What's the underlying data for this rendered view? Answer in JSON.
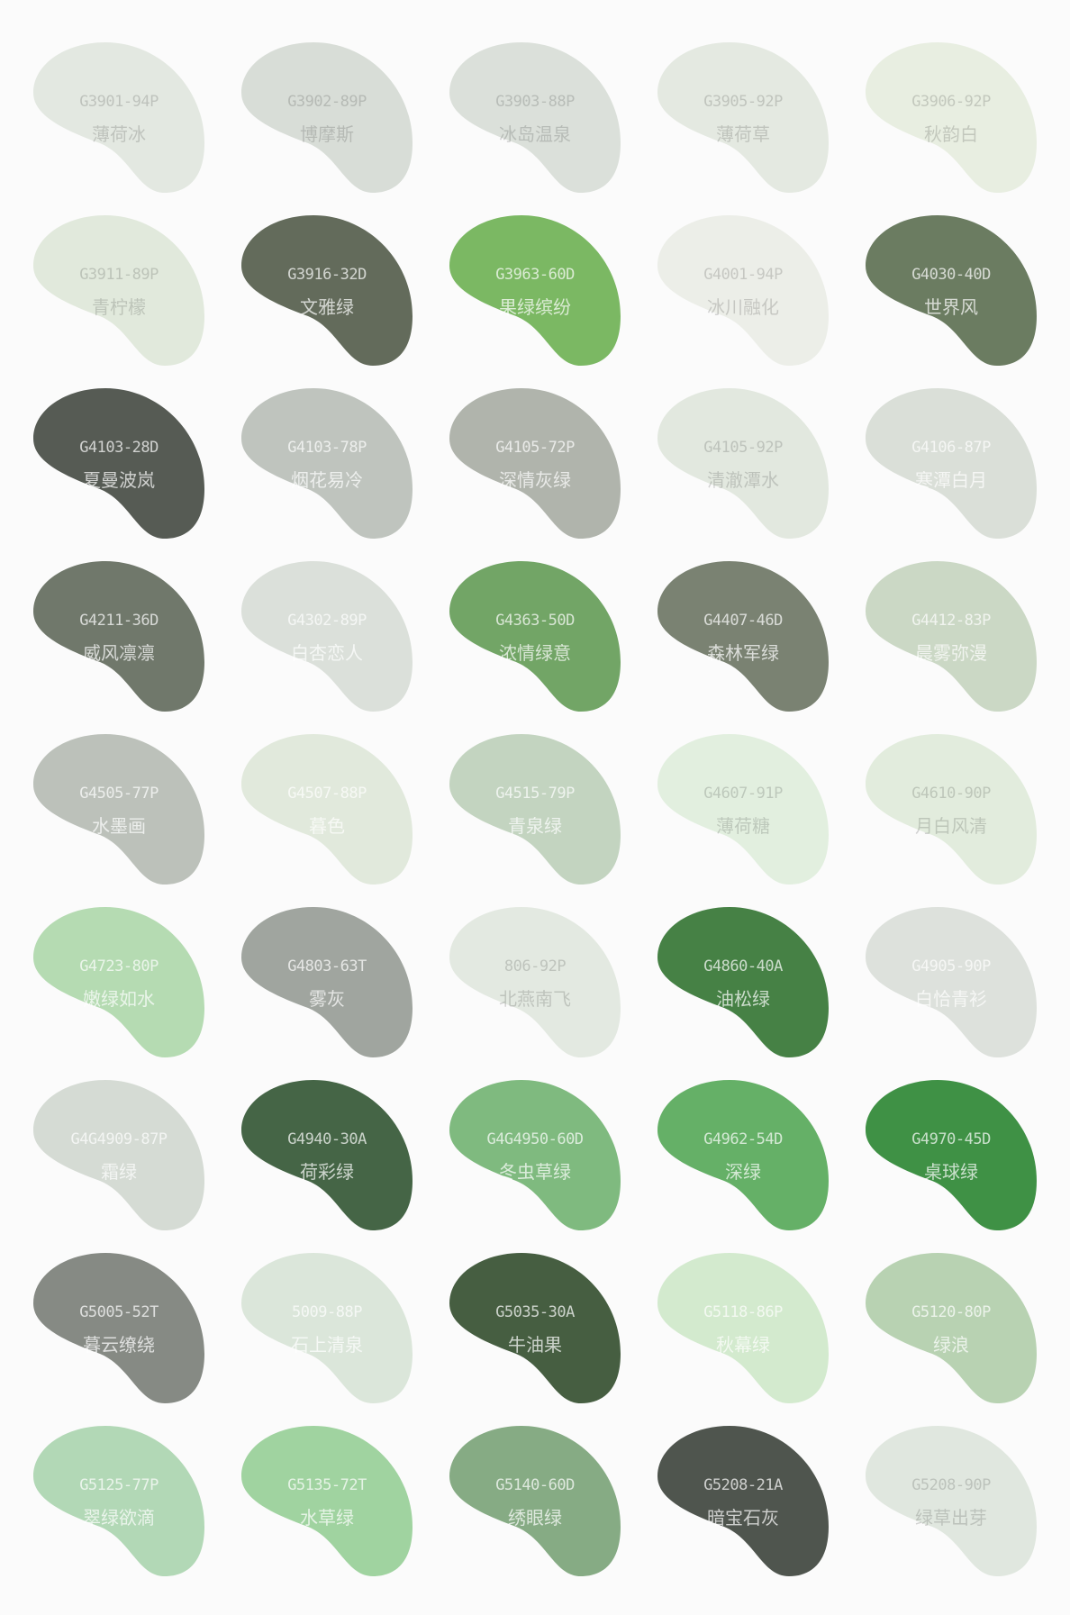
{
  "swatches": [
    {
      "code": "G3901-94P",
      "name": "薄荷冰",
      "color": "#e3e8e1",
      "tone": "light"
    },
    {
      "code": "G3902-89P",
      "name": "博摩斯",
      "color": "#d8ddd7",
      "tone": "light"
    },
    {
      "code": "G3903-88P",
      "name": "冰岛温泉",
      "color": "#dbe0da",
      "tone": "light"
    },
    {
      "code": "G3905-92P",
      "name": "薄荷草",
      "color": "#e4e9e1",
      "tone": "light"
    },
    {
      "code": "G3906-92P",
      "name": "秋韵白",
      "color": "#e8eee1",
      "tone": "light"
    },
    {
      "code": "G3911-89P",
      "name": "青柠檬",
      "color": "#e1e9dc",
      "tone": "light"
    },
    {
      "code": "G3916-32D",
      "name": "文雅绿",
      "color": "#636b5b",
      "tone": "dark"
    },
    {
      "code": "G3963-60D",
      "name": "果绿缤纷",
      "color": "#7bb863",
      "tone": "dark"
    },
    {
      "code": "G4001-94P",
      "name": "冰川融化",
      "color": "#eceee8",
      "tone": "light"
    },
    {
      "code": "G4030-40D",
      "name": "世界风",
      "color": "#6b7c61",
      "tone": "dark"
    },
    {
      "code": "G4103-28D",
      "name": "夏曼波岚",
      "color": "#565b54",
      "tone": "dark"
    },
    {
      "code": "G4103-78P",
      "name": "烟花易冷",
      "color": "#bfc4be",
      "tone": "dark"
    },
    {
      "code": "G4105-72P",
      "name": "深情灰绿",
      "color": "#b0b4ac",
      "tone": "dark"
    },
    {
      "code": "G4105-92P",
      "name": "清澈潭水",
      "color": "#e2e8df",
      "tone": "light"
    },
    {
      "code": "G4106-87P",
      "name": "寒潭白月",
      "color": "#dadfd8",
      "tone": "dark"
    },
    {
      "code": "G4211-36D",
      "name": "威风凛凛",
      "color": "#70786b",
      "tone": "dark"
    },
    {
      "code": "G4302-89P",
      "name": "白杏恋人",
      "color": "#dbe0da",
      "tone": "dark"
    },
    {
      "code": "G4363-50D",
      "name": "浓情绿意",
      "color": "#72a566",
      "tone": "dark"
    },
    {
      "code": "G4407-46D",
      "name": "森林军绿",
      "color": "#7a8272",
      "tone": "dark"
    },
    {
      "code": "G4412-83P",
      "name": "晨雾弥漫",
      "color": "#cbd8c5",
      "tone": "dark"
    },
    {
      "code": "G4505-77P",
      "name": "水墨画",
      "color": "#bcc1ba",
      "tone": "dark"
    },
    {
      "code": "G4507-88P",
      "name": "暮色",
      "color": "#e1e9dc",
      "tone": "dark"
    },
    {
      "code": "G4515-79P",
      "name": "青泉绿",
      "color": "#c3d4c0",
      "tone": "dark"
    },
    {
      "code": "G4607-91P",
      "name": "薄荷糖",
      "color": "#e2efdf",
      "tone": "light"
    },
    {
      "code": "G4610-90P",
      "name": "月白风清",
      "color": "#e2ecdd",
      "tone": "light"
    },
    {
      "code": "G4723-80P",
      "name": "嫩绿如水",
      "color": "#b5dbb2",
      "tone": "dark"
    },
    {
      "code": "G4803-63T",
      "name": "雾灰",
      "color": "#a0a59f",
      "tone": "dark"
    },
    {
      "code": "806-92P",
      "name": "北燕南飞",
      "color": "#e3e9e1",
      "tone": "light"
    },
    {
      "code": "G4860-40A",
      "name": "油松绿",
      "color": "#468145",
      "tone": "dark"
    },
    {
      "code": "G4905-90P",
      "name": "白恰青衫",
      "color": "#dde1dc",
      "tone": "dark"
    },
    {
      "code": "G4G4909-87P",
      "name": "霜绿",
      "color": "#d5dbd4",
      "tone": "dark"
    },
    {
      "code": "G4940-30A",
      "name": "荷彩绿",
      "color": "#456546",
      "tone": "dark"
    },
    {
      "code": "G4G4950-60D",
      "name": "冬虫草绿",
      "color": "#7fba7f",
      "tone": "dark"
    },
    {
      "code": "G4962-54D",
      "name": "深绿",
      "color": "#65b067",
      "tone": "dark"
    },
    {
      "code": "G4970-45D",
      "name": "桌球绿",
      "color": "#3f9145",
      "tone": "dark"
    },
    {
      "code": "G5005-52T",
      "name": "暮云缭绕",
      "color": "#868a84",
      "tone": "dark"
    },
    {
      "code": "5009-88P",
      "name": "石上清泉",
      "color": "#dbe6da",
      "tone": "dark"
    },
    {
      "code": "G5035-30A",
      "name": "牛油果",
      "color": "#465e41",
      "tone": "dark"
    },
    {
      "code": "G5118-86P",
      "name": "秋幕绿",
      "color": "#d3eace",
      "tone": "dark"
    },
    {
      "code": "G5120-80P",
      "name": "绿浪",
      "color": "#b8d2b2",
      "tone": "dark"
    },
    {
      "code": "G5125-77P",
      "name": "翠绿欲滴",
      "color": "#b2d8b6",
      "tone": "dark"
    },
    {
      "code": "G5135-72T",
      "name": "水草绿",
      "color": "#a0d3a0",
      "tone": "dark"
    },
    {
      "code": "G5140-60D",
      "name": "绣眼绿",
      "color": "#86ab84",
      "tone": "dark"
    },
    {
      "code": "G5208-21A",
      "name": "暗宝石灰",
      "color": "#4f554e",
      "tone": "dark"
    },
    {
      "code": "G5208-90P",
      "name": "绿草出芽",
      "color": "#e0e7df",
      "tone": "light"
    }
  ]
}
